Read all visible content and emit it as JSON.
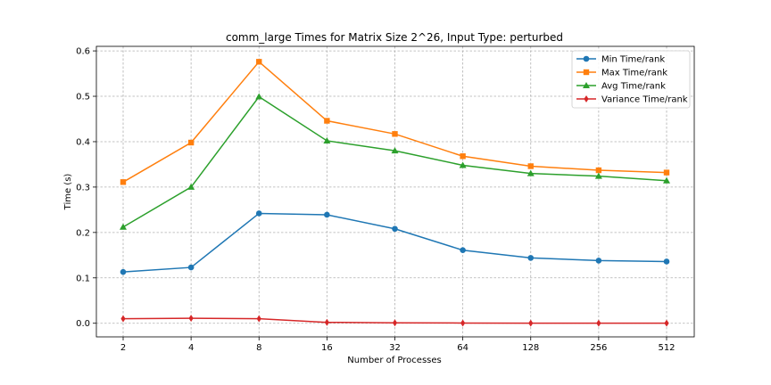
{
  "chart_data": {
    "type": "line",
    "title": "comm_large Times for Matrix Size 2^26, Input Type: perturbed",
    "xlabel": "Number of Processes",
    "ylabel": "Time (s)",
    "x_scale": "log2",
    "categories": [
      "2",
      "4",
      "8",
      "16",
      "32",
      "64",
      "128",
      "256",
      "512"
    ],
    "x": [
      2,
      4,
      8,
      16,
      32,
      64,
      128,
      256,
      512
    ],
    "ylim": [
      -0.03,
      0.61
    ],
    "yticks": [
      "0.0",
      "0.1",
      "0.2",
      "0.3",
      "0.4",
      "0.5",
      "0.6"
    ],
    "grid": true,
    "legend_position": "top-right",
    "series": [
      {
        "name": "Min Time/rank",
        "color": "#1f77b4",
        "marker": "circle",
        "values": [
          0.113,
          0.123,
          0.242,
          0.239,
          0.208,
          0.161,
          0.144,
          0.138,
          0.136
        ]
      },
      {
        "name": "Max Time/rank",
        "color": "#ff7f0e",
        "marker": "square",
        "values": [
          0.311,
          0.398,
          0.576,
          0.446,
          0.417,
          0.368,
          0.346,
          0.337,
          0.332
        ]
      },
      {
        "name": "Avg Time/rank",
        "color": "#2ca02c",
        "marker": "triangle",
        "values": [
          0.212,
          0.3,
          0.499,
          0.402,
          0.38,
          0.348,
          0.33,
          0.324,
          0.314
        ]
      },
      {
        "name": "Variance Time/rank",
        "color": "#d62728",
        "marker": "diamond",
        "values": [
          0.01,
          0.011,
          0.01,
          0.002,
          0.001,
          0.0005,
          0.0003,
          0.0002,
          0.0002
        ]
      }
    ]
  }
}
